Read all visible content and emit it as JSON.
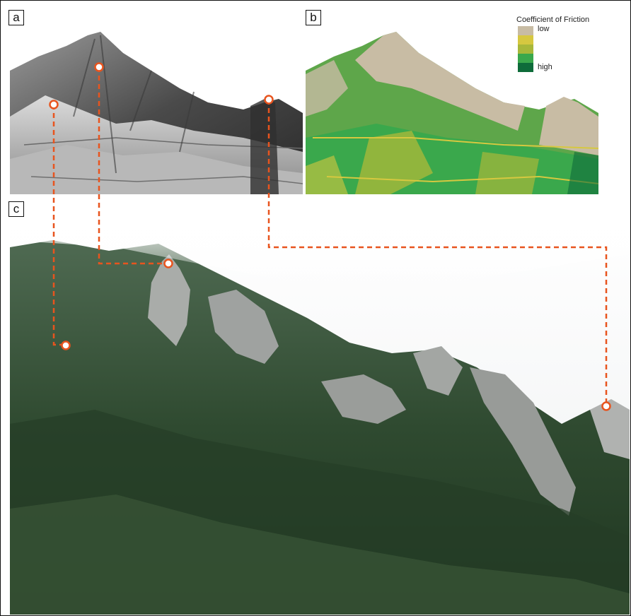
{
  "panels": {
    "a": {
      "label": "a"
    },
    "b": {
      "label": "b"
    },
    "c": {
      "label": "c"
    }
  },
  "legend": {
    "title": "Coefficient of Friction",
    "low_label": "low",
    "high_label": "high",
    "colors": [
      "#c8bca4",
      "#d6c840",
      "#a8b83a",
      "#3aa84c",
      "#0e6b3a"
    ]
  },
  "colors": {
    "marker": "#e8541e",
    "frame": "#111111"
  }
}
